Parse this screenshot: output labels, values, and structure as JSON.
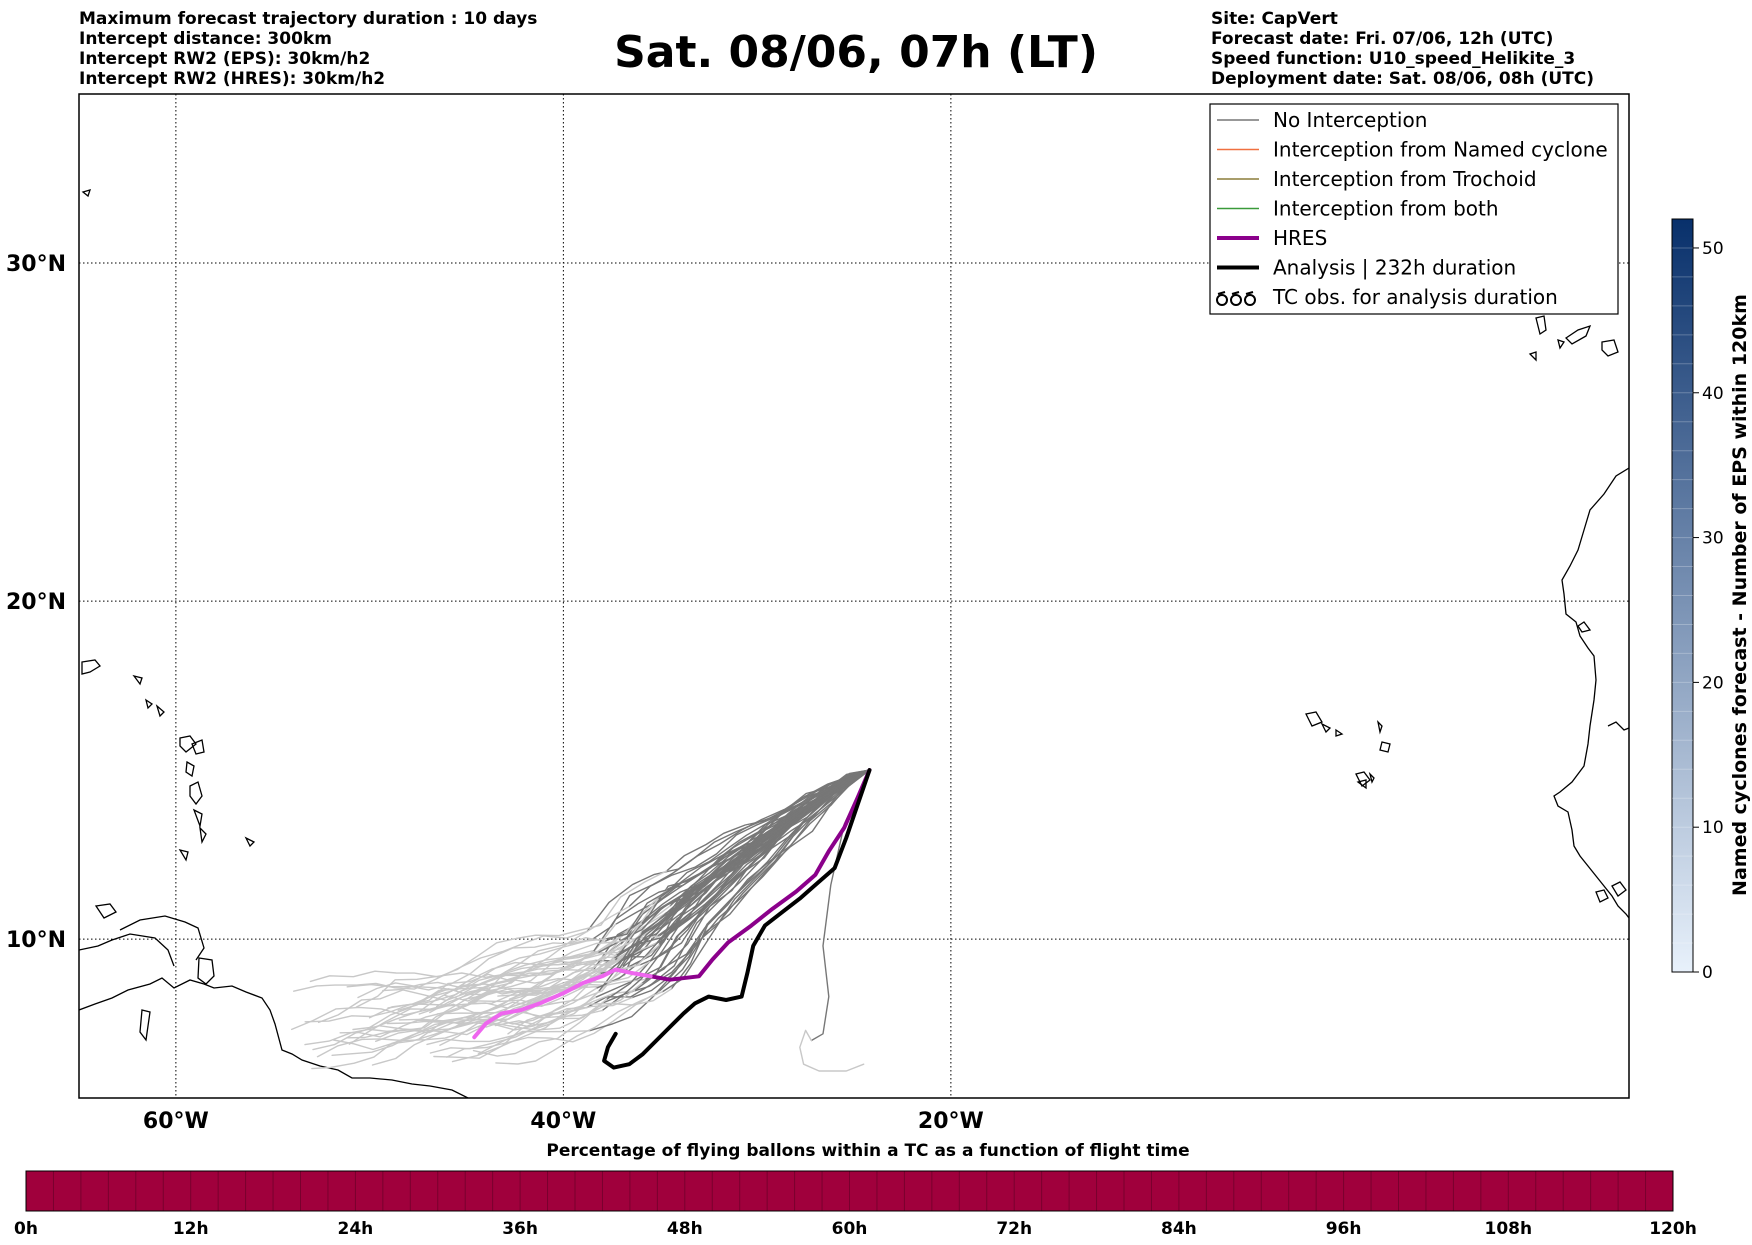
{
  "header": {
    "left_lines": [
      "Maximum forecast trajectory duration : 10 days",
      "Intercept distance: 300km",
      "Intercept RW2 (EPS):  30km/h2",
      "Intercept RW2 (HRES): 30km/h2"
    ],
    "title": "Sat. 08/06, 07h (LT)",
    "right_lines": [
      "Site: CapVert",
      "Forecast date: Fri. 07/06, 12h (UTC)",
      "Speed function: U10_speed_Helikite_3",
      "Deployment date: Sat. 08/06, 08h (UTC)"
    ]
  },
  "map": {
    "lon_range": [
      -65,
      15
    ],
    "lat_range": [
      5.3,
      35
    ],
    "lat_ticks": [
      {
        "value": 30,
        "label": "30°N"
      },
      {
        "value": 20,
        "label": "20°N"
      },
      {
        "value": 10,
        "label": "10°N"
      }
    ],
    "lon_ticks": [
      {
        "value": -60,
        "label": "60°W"
      },
      {
        "value": -40,
        "label": "40°W"
      },
      {
        "value": -20,
        "label": "20°W"
      }
    ],
    "colors": {
      "no_interception": "#777777",
      "no_interception_late": "#c8c8c8",
      "named_cyclone": "#f07040",
      "trochoid": "#8b7d3a",
      "both": "#3a9a3a",
      "hres": "#8b008b",
      "hres_late": "#ee66ee",
      "analysis": "#000000"
    },
    "legend": {
      "position": "top-right",
      "items": [
        {
          "label": "No Interception",
          "kind": "no_interception"
        },
        {
          "label": "Interception from Named cyclone",
          "kind": "named_cyclone"
        },
        {
          "label": "Interception from Trochoid",
          "kind": "trochoid"
        },
        {
          "label": "Interception from both",
          "kind": "both"
        },
        {
          "label": "HRES",
          "kind": "hres"
        },
        {
          "label": "Analysis | 232h duration",
          "kind": "analysis"
        },
        {
          "label": "TC obs. for analysis duration",
          "kind": "tc_obs"
        }
      ]
    },
    "launch_site": {
      "lon": -24.2,
      "lat": 15.0
    },
    "hres_track": [
      [
        -24.2,
        15.0
      ],
      [
        -24.8,
        14.2
      ],
      [
        -25.5,
        13.3
      ],
      [
        -26.3,
        12.6
      ],
      [
        -27.0,
        11.9
      ],
      [
        -28.0,
        11.4
      ],
      [
        -29.2,
        10.9
      ],
      [
        -30.3,
        10.4
      ],
      [
        -31.5,
        9.9
      ],
      [
        -32.3,
        9.4
      ],
      [
        -33.0,
        8.9
      ],
      [
        -34.5,
        8.8
      ],
      [
        -35.5,
        8.9
      ],
      [
        -36.5,
        9.0
      ],
      [
        -37.3,
        9.1
      ],
      [
        -38.0,
        8.9
      ],
      [
        -39.0,
        8.7
      ],
      [
        -40.0,
        8.4
      ],
      [
        -41.2,
        8.1
      ],
      [
        -42.2,
        7.9
      ],
      [
        -43.2,
        7.8
      ],
      [
        -44.0,
        7.5
      ],
      [
        -44.6,
        7.1
      ]
    ],
    "hres_late_from_index": 12,
    "analysis_track": [
      [
        -24.2,
        15.0
      ],
      [
        -24.8,
        14.0
      ],
      [
        -25.4,
        13.0
      ],
      [
        -26.0,
        12.1
      ],
      [
        -26.8,
        11.7
      ],
      [
        -27.8,
        11.2
      ],
      [
        -28.7,
        10.8
      ],
      [
        -29.6,
        10.4
      ],
      [
        -30.2,
        9.8
      ],
      [
        -30.5,
        9.0
      ],
      [
        -30.8,
        8.3
      ],
      [
        -31.6,
        8.2
      ],
      [
        -32.5,
        8.3
      ],
      [
        -33.2,
        8.1
      ],
      [
        -33.8,
        7.8
      ],
      [
        -34.5,
        7.4
      ],
      [
        -35.2,
        7.0
      ],
      [
        -35.9,
        6.6
      ],
      [
        -36.6,
        6.3
      ],
      [
        -37.4,
        6.2
      ],
      [
        -37.9,
        6.4
      ],
      [
        -37.7,
        6.8
      ],
      [
        -37.3,
        7.2
      ]
    ]
  },
  "bottom_colorbar": {
    "title": "Percentage of flying ballons within a TC as a function of flight time",
    "color": "#a0003c",
    "tick_labels": [
      "0h",
      "12h",
      "24h",
      "36h",
      "48h",
      "60h",
      "72h",
      "84h",
      "96h",
      "108h",
      "120h"
    ]
  },
  "right_colorbar": {
    "label": "Named cyclones forecast - Number of EPS within 120km",
    "range": [
      0,
      52
    ],
    "ticks": [
      0,
      10,
      20,
      30,
      40,
      50
    ],
    "tick_labels": [
      "0",
      "10",
      "20",
      "30",
      "40",
      "50"
    ],
    "color_low": "#e8f1fb",
    "color_high": "#08306b"
  }
}
